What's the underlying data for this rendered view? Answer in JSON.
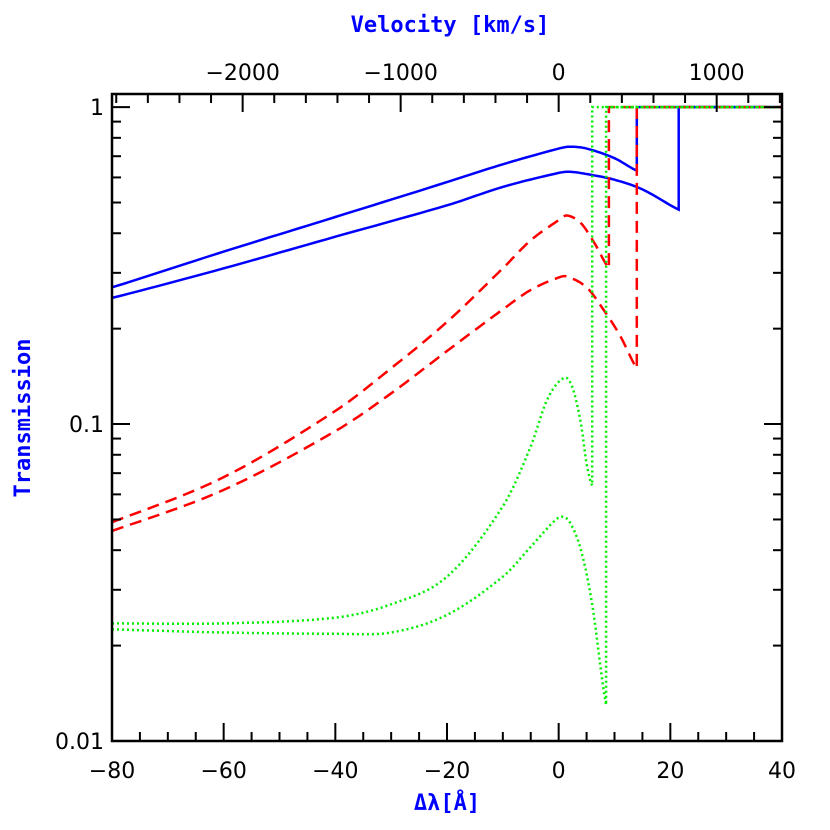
{
  "chart_data": {
    "type": "line",
    "title": "",
    "xlabel": "Δλ[Å]",
    "ylabel": "Transmission",
    "x2label": "Velocity [km/s]",
    "xlim": [
      -80,
      40
    ],
    "ylim": [
      0.01,
      1.1
    ],
    "yscale": "log",
    "grid": false,
    "x_ticks": [
      "-80",
      "-60",
      "-40",
      "-20",
      "0",
      "20",
      "40"
    ],
    "y_ticks": [
      "0.01",
      "0.1",
      "1"
    ],
    "x2_ticks": [
      "-2000",
      "-1000",
      "0",
      "1000"
    ],
    "axis_title_color": "#0000ff",
    "series": [
      {
        "color": "#0000ff",
        "style": "solid",
        "x": [
          -80,
          -60,
          -40,
          -20,
          -10,
          0,
          2,
          5,
          10,
          14,
          14,
          40
        ],
        "y": [
          0.27,
          0.35,
          0.45,
          0.58,
          0.66,
          0.74,
          0.75,
          0.74,
          0.69,
          0.63,
          1,
          1
        ]
      },
      {
        "color": "#0000ff",
        "style": "solid",
        "x": [
          -80,
          -60,
          -40,
          -20,
          -10,
          0,
          2,
          5,
          10,
          15,
          21.5,
          21.5,
          40
        ],
        "y": [
          0.25,
          0.31,
          0.39,
          0.49,
          0.56,
          0.62,
          0.625,
          0.615,
          0.59,
          0.55,
          0.475,
          1,
          1
        ]
      },
      {
        "color": "#ff0000",
        "style": "dashed",
        "x": [
          -80,
          -60,
          -40,
          -30,
          -20,
          -10,
          -5,
          0,
          1.5,
          4,
          6.5,
          9,
          9,
          40
        ],
        "y": [
          0.049,
          0.068,
          0.11,
          0.15,
          0.21,
          0.31,
          0.38,
          0.44,
          0.455,
          0.43,
          0.37,
          0.31,
          1,
          1
        ]
      },
      {
        "color": "#ff0000",
        "style": "dashed",
        "x": [
          -80,
          -60,
          -40,
          -30,
          -20,
          -10,
          -5,
          0,
          1.5,
          5,
          8,
          11,
          14,
          14,
          40
        ],
        "y": [
          0.046,
          0.062,
          0.095,
          0.125,
          0.17,
          0.23,
          0.265,
          0.29,
          0.292,
          0.27,
          0.23,
          0.19,
          0.15,
          1,
          1
        ]
      },
      {
        "color": "#00ee00",
        "style": "dotted",
        "x": [
          -80,
          -60,
          -40,
          -30,
          -20,
          -10,
          -5,
          -2,
          1,
          2.5,
          4,
          5,
          6,
          6,
          40
        ],
        "y": [
          0.0235,
          0.0235,
          0.0245,
          0.027,
          0.033,
          0.055,
          0.085,
          0.12,
          0.14,
          0.13,
          0.1,
          0.075,
          0.064,
          1,
          1
        ]
      },
      {
        "color": "#00ee00",
        "style": "dotted",
        "x": [
          -80,
          -60,
          -40,
          -30,
          -20,
          -10,
          -5,
          -1,
          0.5,
          2,
          4,
          6,
          8.5,
          8.5,
          40
        ],
        "y": [
          0.0225,
          0.022,
          0.0218,
          0.022,
          0.025,
          0.033,
          0.041,
          0.049,
          0.051,
          0.049,
          0.04,
          0.027,
          0.013,
          1,
          1
        ]
      }
    ]
  }
}
